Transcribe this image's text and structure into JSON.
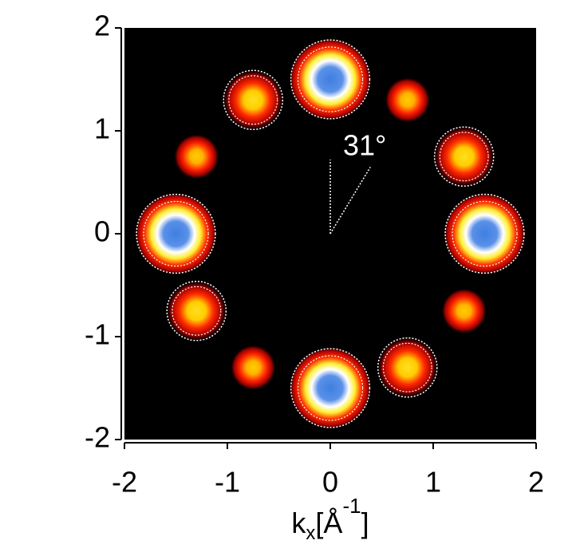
{
  "chart_data": {
    "type": "scatter",
    "x": [
      0,
      1.5,
      0,
      -1.5,
      -0.75,
      1.3,
      0.75,
      -1.3,
      0.75,
      1.3,
      -0.75,
      -1.3
    ],
    "y": [
      1.5,
      0,
      -1.5,
      0,
      1.3,
      0.75,
      -1.3,
      -0.75,
      1.3,
      -0.75,
      -1.3,
      0.75
    ],
    "intensity": [
      1,
      1,
      1,
      1,
      0.75,
      0.75,
      0.75,
      0.75,
      0.55,
      0.55,
      0.55,
      0.55
    ],
    "xlim": [
      -2,
      2
    ],
    "ylim": [
      -2,
      2
    ],
    "xticks": [
      -2,
      -1,
      0,
      1,
      2
    ],
    "yticks": [
      -2,
      -1,
      0,
      1,
      2
    ],
    "xlabel": [
      "k",
      "x",
      "[Å",
      "-1",
      "]"
    ],
    "annotation": {
      "angle": 31,
      "label": "31°"
    },
    "background": "#000000"
  }
}
